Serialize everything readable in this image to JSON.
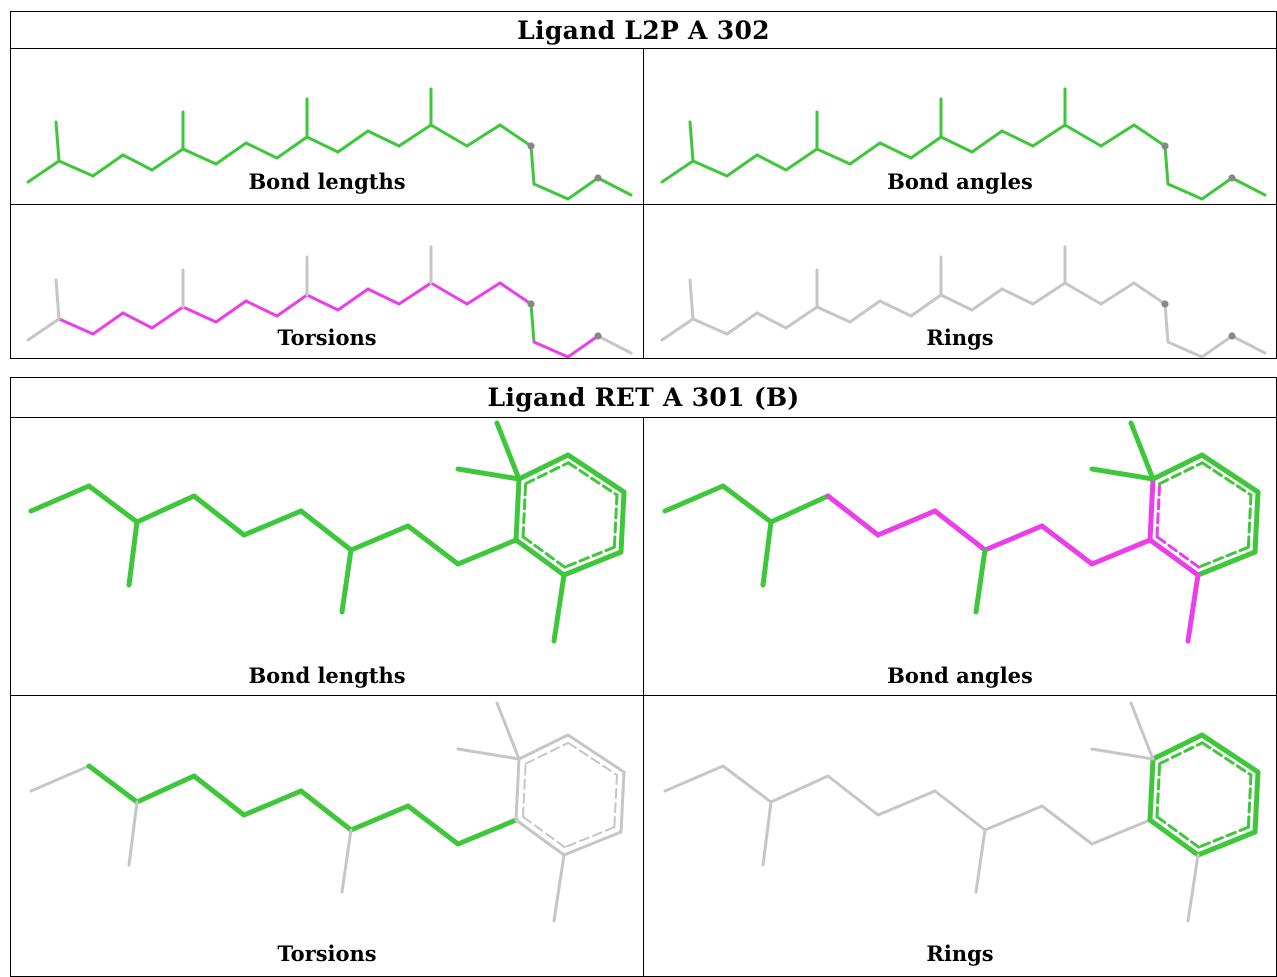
{
  "colors": {
    "ok": "#3ec73a",
    "outlier": "#ea3ee9",
    "neutral": "#c6c6c6",
    "atom": "#888888"
  },
  "ligands": [
    {
      "title": "Ligand L2P A 302",
      "panels": [
        "Bond lengths",
        "Bond angles",
        "Torsions",
        "Rings"
      ]
    },
    {
      "title": "Ligand RET A 301 (B)",
      "panels": [
        "Bond lengths",
        "Bond angles",
        "Torsions",
        "Rings"
      ]
    }
  ]
}
